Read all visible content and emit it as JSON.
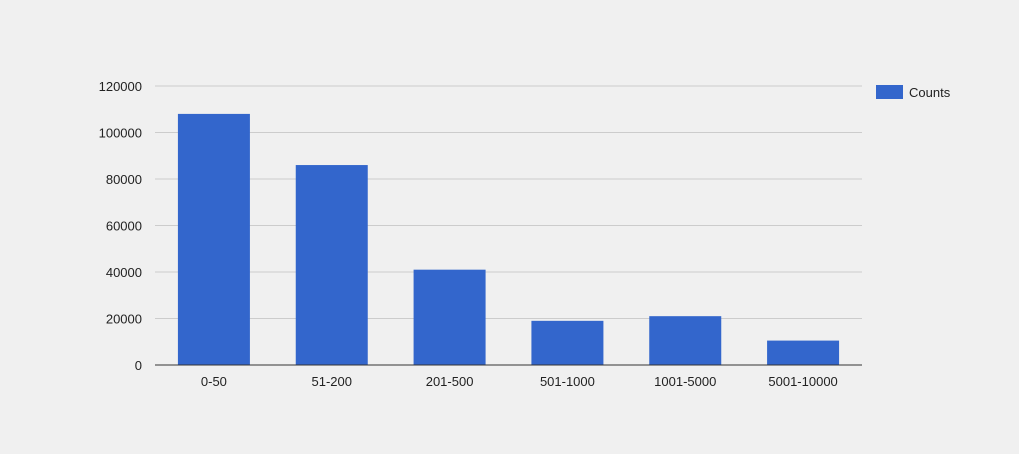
{
  "chart_data": {
    "type": "bar",
    "categories": [
      "0-50",
      "51-200",
      "201-500",
      "501-1000",
      "1001-5000",
      "5001-10000"
    ],
    "series": [
      {
        "name": "Counts",
        "values": [
          108000,
          86000,
          41000,
          19000,
          21000,
          10500
        ],
        "color": "#3366cc"
      }
    ],
    "title": "",
    "xlabel": "",
    "ylabel": "",
    "ylim": [
      0,
      120000
    ],
    "yticks": [
      "0",
      "20000",
      "40000",
      "60000",
      "80000",
      "100000",
      "120000"
    ],
    "grid": true,
    "legend_position": "right",
    "colors": {
      "background": "#f0f0f0",
      "gridline": "#cccccc",
      "axis": "#333333"
    }
  }
}
